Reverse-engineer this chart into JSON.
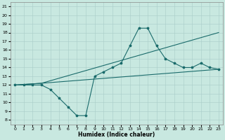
{
  "xlabel": "Humidex (Indice chaleur)",
  "bg_color": "#c8e8e0",
  "line_color": "#1a6b6b",
  "xlim": [
    -0.5,
    23.5
  ],
  "ylim": [
    7.5,
    21.5
  ],
  "xticks": [
    0,
    1,
    2,
    3,
    4,
    5,
    6,
    7,
    8,
    9,
    10,
    11,
    12,
    13,
    14,
    15,
    16,
    17,
    18,
    19,
    20,
    21,
    22,
    23
  ],
  "yticks": [
    8,
    9,
    10,
    11,
    12,
    13,
    14,
    15,
    16,
    17,
    18,
    19,
    20,
    21
  ],
  "line1_x": [
    0,
    1,
    2,
    3,
    4,
    5,
    6,
    7,
    8,
    9,
    10,
    11,
    12,
    13,
    14,
    15,
    16,
    17,
    18,
    19,
    20,
    21,
    22,
    23
  ],
  "line1_y": [
    12,
    12,
    12,
    12,
    11.5,
    10.5,
    9.5,
    8.5,
    8.5,
    13,
    13.5,
    14,
    14.5,
    16.5,
    18.5,
    18.5,
    16.5,
    15,
    14.5,
    14,
    14,
    14.5,
    14,
    13.8
  ],
  "line2_x": [
    0,
    3,
    23
  ],
  "line2_y": [
    12,
    12.2,
    18
  ],
  "line3_x": [
    0,
    3,
    23
  ],
  "line3_y": [
    12,
    12.2,
    13.8
  ]
}
